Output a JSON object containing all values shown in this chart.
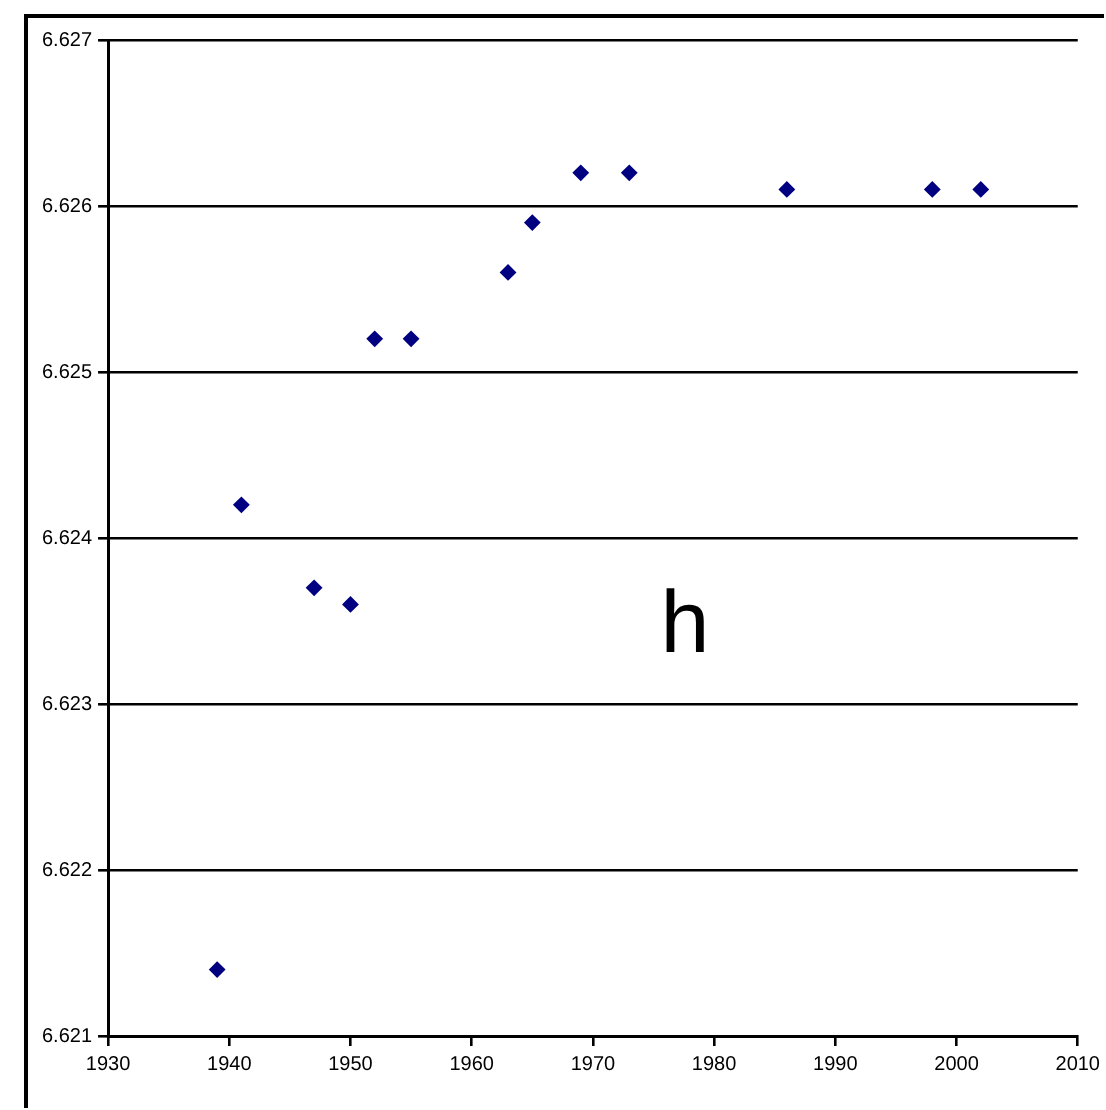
{
  "chart_data": {
    "type": "scatter",
    "x": [
      1939,
      1941,
      1947,
      1950,
      1952,
      1955,
      1963,
      1965,
      1969,
      1973,
      1986,
      1998,
      2002
    ],
    "series": [
      {
        "color": "#000080",
        "values": [
          6.6214,
          6.6242,
          6.6237,
          6.6236,
          6.6252,
          6.6252,
          6.6256,
          6.6259,
          6.6262,
          6.6262,
          6.6261,
          6.6261,
          6.6261
        ]
      }
    ],
    "xlim": [
      1930,
      2010
    ],
    "xticks": [
      1930,
      1940,
      1950,
      1960,
      1970,
      1980,
      1990,
      2000,
      2010
    ],
    "ylim": [
      6.621,
      6.627
    ],
    "yticks": [
      6.621,
      6.622,
      6.623,
      6.624,
      6.625,
      6.626,
      6.627
    ],
    "grid": "y",
    "legend": false,
    "marker": "diamond",
    "annotations": [
      "h"
    ]
  }
}
